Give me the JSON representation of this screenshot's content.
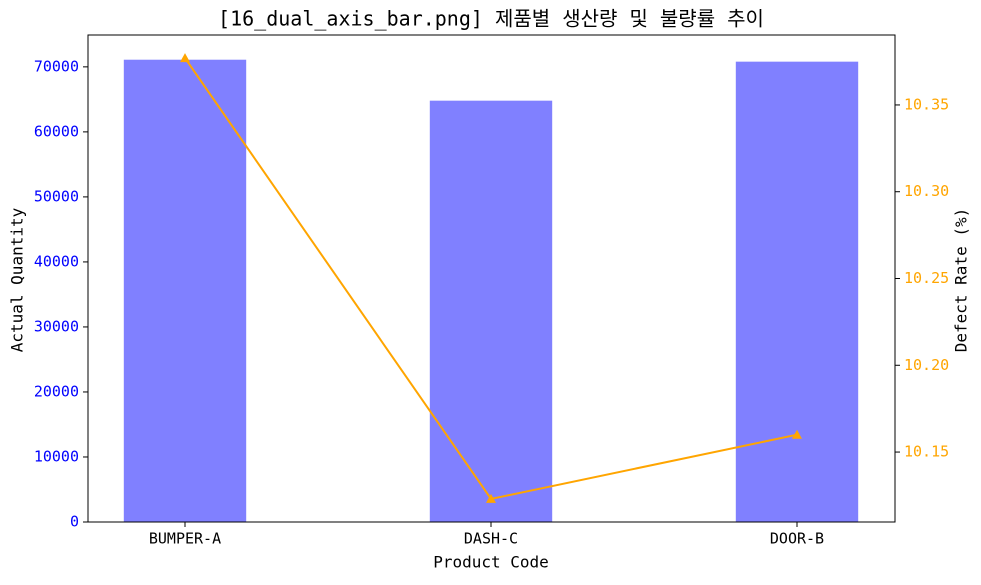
{
  "chart_data": {
    "type": "bar_line_dual_axis",
    "title": "[16_dual_axis_bar.png] 제품별 생산량 및 불량률 추이",
    "xlabel": "Product Code",
    "ylabel": "Actual Quantity",
    "y2label": "Defect Rate (%)",
    "categories": [
      "BUMPER-A",
      "DASH-C",
      "DOOR-B"
    ],
    "series": [
      {
        "type": "bar",
        "color": "#8080ff",
        "values": [
          71100,
          64800,
          70800
        ]
      },
      {
        "type": "line",
        "axis": "y2",
        "color": "#ffa500",
        "marker": "triangle",
        "values": [
          10.377,
          10.123,
          10.16
        ]
      }
    ],
    "ylim": [
      0,
      74900
    ],
    "yticks": [
      0,
      10000,
      20000,
      30000,
      40000,
      50000,
      60000,
      70000
    ],
    "ytick_color": "#0000ff",
    "y2lim": [
      10.1097,
      10.3903
    ],
    "y2ticks": [
      10.15,
      {
        "value": 10.2,
        "label": "10.20"
      },
      10.25,
      {
        "value": 10.3,
        "label": "10.30"
      },
      10.35
    ],
    "y2tick_color": "#ffa500",
    "grid": false
  }
}
